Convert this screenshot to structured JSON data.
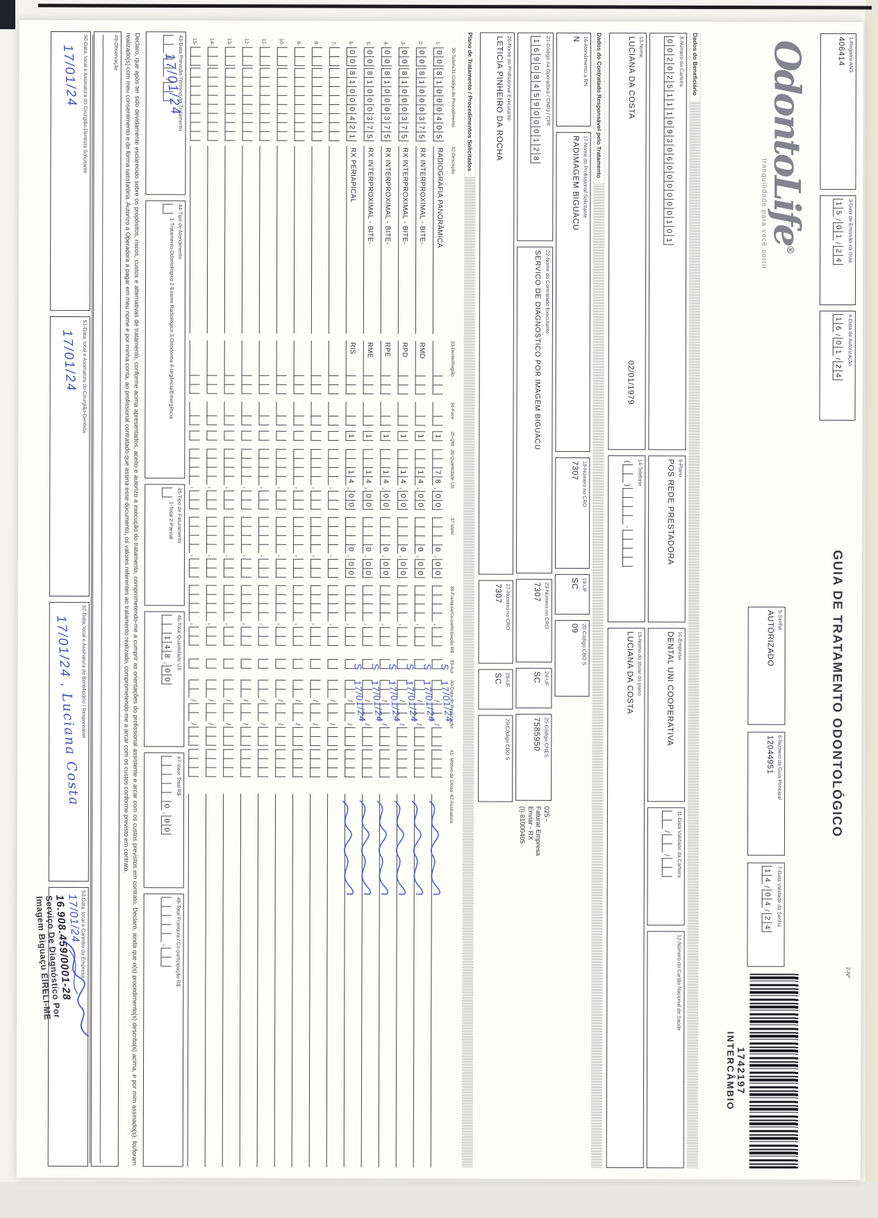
{
  "header": {
    "logo": "OdontoLife",
    "logo_reg": "®",
    "tagline": "tranquilidade para você sorrir",
    "title": "GUIA DE TRATAMENTO ODONTOLÓGICO",
    "number_label": "2-Nº",
    "barcode_number": "1742197",
    "barcode_type": "INTERCÂMBIO"
  },
  "guide": {
    "f1": {
      "label": "1-Registro ANS",
      "value": "406414"
    },
    "f3": {
      "label": "3-Data de Emissão da Guia",
      "boxes": "15/01/24"
    },
    "f4": {
      "label": "4-Data de Autorização",
      "boxes": "16/01/24"
    },
    "f5": {
      "label": "5-Senha",
      "value": "AUTORIZADO"
    },
    "f6": {
      "label": "6-Número da Guia Principal",
      "value": "12044951"
    },
    "f7": {
      "label": "7-Data Validade da Senha",
      "boxes": "14/04/24"
    }
  },
  "beneficiario": {
    "section": "Dados do Beneficiário",
    "f8": {
      "label": "8-Número da Carteira",
      "boxes": "00202511109306000000101"
    },
    "f9": {
      "label": "9-Plano",
      "value": "POS REDE PRESTADORA"
    },
    "f10": {
      "label": "10-Empresa",
      "value": "DENTAL UNI  COOPERATIVA"
    },
    "f11": {
      "label": "11-Data Validade da Carteira",
      "boxes": "  /  /  "
    },
    "f12": {
      "label": "12-Número do Cartão Nacional de Saúde",
      "value": ""
    },
    "f13": {
      "label": "13-Nome",
      "value": "LUCIANA DA COSTA",
      "value2": "02/01/1979"
    },
    "f14": {
      "label": "14-Telefone",
      "boxes": "(  )    -    "
    },
    "f15": {
      "label": "15-Nome do titular do plano",
      "value": "LUCIANA DA COSTA"
    }
  },
  "contratado": {
    "section": "Dados do Contratado Responsável pelo Tratamento",
    "f16": {
      "label": "16-Atendimento a RN",
      "value": "N"
    },
    "f17": {
      "label": "17-Nome do Profissional Solicitante",
      "value": "RADIMAGEM BIGUACU"
    },
    "f18": {
      "label": "18-Número no CRO",
      "value": "7307"
    },
    "f19": {
      "label": "19-UF",
      "value": "SC"
    },
    "f20": {
      "label": "20-Código CBO S",
      "value": "09"
    },
    "f21": {
      "label": "21-Código na Operadora / CNPJ / CPF",
      "boxes": "16908459000128"
    },
    "f22": {
      "label": "22-Nome do Contratado Executante",
      "value": "SERVICO DE DIAGNOSTICO POR IMAGEM BIGUACU"
    },
    "f23": {
      "label": "23-Número no CRO",
      "value": "7307"
    },
    "f24": {
      "label": "24-UF",
      "value": "SC"
    },
    "f25": {
      "label": "25-Código CNES",
      "value": "7585950"
    },
    "note_lines": [
      "025 -",
      "Faturar Empresa",
      "Enviar - RX",
      "(I) 81000405"
    ],
    "f26": {
      "label": "26-Nome do Profissional Executante",
      "value": "LETICIA PINHEIRO DA ROCHA"
    },
    "f27": {
      "label": "27-Número no CRO",
      "value": "7307"
    },
    "f28": {
      "label": "28-UF",
      "value": "SC"
    },
    "f29": {
      "label": "29-Código CBO S",
      "value": ""
    }
  },
  "plano": {
    "section": "Plano de Tratamento / Procedimentos Solicitados",
    "headers": [
      "30-Tabela",
      "31-Código do Procedimento",
      "32-Descrição",
      "33-Dente/Região",
      "34-Face",
      "35-Qtd",
      "36-Quantidade US",
      "37-Valor",
      "38-Franquia/Co-participação R$",
      "39-Aut",
      "40-Data de Realização",
      "41- Motivo da Glosa",
      "42-Assinatura"
    ],
    "rows": [
      {
        "n": "1",
        "tabela": "00",
        "codigo": "81000405",
        "descricao": "RADIOGRAFIA PANORÂMICA",
        "regiao": "",
        "qtd": "1",
        "us": "  78,00",
        "valor": "   0,00",
        "franquia": "    ,  ",
        "aut": "S",
        "data": "17/01/24",
        "signed": true
      },
      {
        "n": "2",
        "tabela": "00",
        "codigo": "81000375",
        "descricao": "RX INTERPROXIMAL - BITE-",
        "regiao": "RMD",
        "qtd": "1",
        "us": "  14,00",
        "valor": "   0,00",
        "franquia": "    ,  ",
        "aut": "S",
        "data": "17/01/24",
        "signed": true
      },
      {
        "n": "3",
        "tabela": "00",
        "codigo": "81000375",
        "descricao": "RX INTERPROXIMAL - BITE-",
        "regiao": "RPD",
        "qtd": "1",
        "us": "  14,00",
        "valor": "   0,00",
        "franquia": "    ,  ",
        "aut": "S",
        "data": "17/01/24",
        "signed": true
      },
      {
        "n": "4",
        "tabela": "00",
        "codigo": "81000375",
        "descricao": "RX INTERPROXIMAL - BITE-",
        "regiao": "RPE",
        "qtd": "1",
        "us": "  14,00",
        "valor": "   0,00",
        "franquia": "    ,  ",
        "aut": "S",
        "data": "17/01/24",
        "signed": true
      },
      {
        "n": "5",
        "tabela": "00",
        "codigo": "81000375",
        "descricao": "RX INTERPROXIMAL - BITE-",
        "regiao": "RME",
        "qtd": "1",
        "us": "  14,00",
        "valor": "   0,00",
        "franquia": "    ,  ",
        "aut": "S",
        "data": "17/01/24",
        "signed": true
      },
      {
        "n": "6",
        "tabela": "00",
        "codigo": "81000421",
        "descricao": "RX PERIAPICAL",
        "regiao": "RIS",
        "qtd": "1",
        "us": "  14,00",
        "valor": "   0,00",
        "franquia": "    ,  ",
        "aut": "S",
        "data": "17/01/24",
        "signed": true
      },
      {
        "n": "7",
        "tabela": "  ",
        "codigo": "        ",
        "descricao": "",
        "regiao": "",
        "qtd": " ",
        "us": "    ,  ",
        "valor": "    ,  ",
        "franquia": "    ,  ",
        "aut": "",
        "data": "",
        "signed": false
      },
      {
        "n": "8",
        "tabela": "  ",
        "codigo": "        ",
        "descricao": "",
        "regiao": "",
        "qtd": " ",
        "us": "    ,  ",
        "valor": "    ,  ",
        "franquia": "    ,  ",
        "aut": "",
        "data": "",
        "signed": false
      },
      {
        "n": "9",
        "tabela": "  ",
        "codigo": "        ",
        "descricao": "",
        "regiao": "",
        "qtd": " ",
        "us": "    ,  ",
        "valor": "    ,  ",
        "franquia": "    ,  ",
        "aut": "",
        "data": "",
        "signed": false
      },
      {
        "n": "10",
        "tabela": "  ",
        "codigo": "        ",
        "descricao": "",
        "regiao": "",
        "qtd": " ",
        "us": "    ,  ",
        "valor": "    ,  ",
        "franquia": "    ,  ",
        "aut": "",
        "data": "",
        "signed": false
      },
      {
        "n": "11",
        "tabela": "  ",
        "codigo": "        ",
        "descricao": "",
        "regiao": "",
        "qtd": " ",
        "us": "    ,  ",
        "valor": "    ,  ",
        "franquia": "    ,  ",
        "aut": "",
        "data": "",
        "signed": false
      },
      {
        "n": "12",
        "tabela": "  ",
        "codigo": "        ",
        "descricao": "",
        "regiao": "",
        "qtd": " ",
        "us": "    ,  ",
        "valor": "    ,  ",
        "franquia": "    ,  ",
        "aut": "",
        "data": "",
        "signed": false
      },
      {
        "n": "13",
        "tabela": "  ",
        "codigo": "        ",
        "descricao": "",
        "regiao": "",
        "qtd": " ",
        "us": "    ,  ",
        "valor": "    ,  ",
        "franquia": "    ,  ",
        "aut": "",
        "data": "",
        "signed": false
      },
      {
        "n": "14",
        "tabela": "  ",
        "codigo": "        ",
        "descricao": "",
        "regiao": "",
        "qtd": " ",
        "us": "    ,  ",
        "valor": "    ,  ",
        "franquia": "    ,  ",
        "aut": "",
        "data": "",
        "signed": false
      },
      {
        "n": "15",
        "tabela": "  ",
        "codigo": "        ",
        "descricao": "",
        "regiao": "",
        "qtd": " ",
        "us": "    ,  ",
        "valor": "    ,  ",
        "franquia": "    ,  ",
        "aut": "",
        "data": "",
        "signed": false
      }
    ],
    "empty_date": "  /  /  "
  },
  "totais": {
    "f43": {
      "label": "43-Data Previsão Término do Tratamento",
      "boxes": "  /  /  ",
      "hw": "17/01/24"
    },
    "f44": {
      "label": "44-Tipo de Atendimento",
      "box": " ",
      "options": "1-Tratamento Odontológico  2-Exame Radiológico  3-Ortodontia  4-Urgência/Emergência"
    },
    "f45": {
      "label": "45-Tipo de Faturamento",
      "box": " ",
      "options": "1-Total  2-Parcial"
    },
    "f46": {
      "label": "46-Total Quantidade US",
      "boxes": "  148,00"
    },
    "f47": {
      "label": "47-Valor Total R$",
      "boxes": "     0,00"
    },
    "f48": {
      "label": "48-Total Franquia / Co-participação R$",
      "boxes": "     ,  "
    }
  },
  "declaracao": "Declaro, que após ter sido devidamente esclarecido sobre os propósitos, riscos, custos e alternativas de tratamento, conforme acima apresentados, aceito e autorizo a execução do tratamento, comprometendo-me a cumprir as orientações do profissional assistente e arcar com os custos previstos em contrato. Declaro, ainda que o(s) procedimento(s) descrito(s) acima, e por mim assinado(s), foi/foram realizado(s) com meu consentimento e de forma satisfatória. Autorizo a Operadora a pagar em meu nome e por minha conta, ao profissional contratado que assina esse documento, os valores referentes ao tratamento realizado, comprometendo-me a arcar com os custos conforme previsto em contrato.",
  "rodape": {
    "f49": {
      "label": "49-Observação"
    },
    "f50": {
      "label": "50-Data, local e Assinatura do Cirurgião-Dentista Solicitante",
      "hw": "17/01/24"
    },
    "f51": {
      "label": "51-Data, local e Assinatura do Cirurgião-Dentista",
      "hw": "17/01/24"
    },
    "f52": {
      "label": "52-Data, local e Assinatura do Beneficiário / Responsável",
      "hw": "17/01/24 ,",
      "hw_name": "Luciana Costa"
    },
    "f53": {
      "label": "53-Data, local e Carimbo da Empresa",
      "hw": "17/01/24"
    },
    "stamp": {
      "cnpj": "16.908.459/0001-28",
      "line1": "Serviço De Diagnóstico Por",
      "line2": "Imagem Biguaçu EIRELI-ME"
    }
  }
}
